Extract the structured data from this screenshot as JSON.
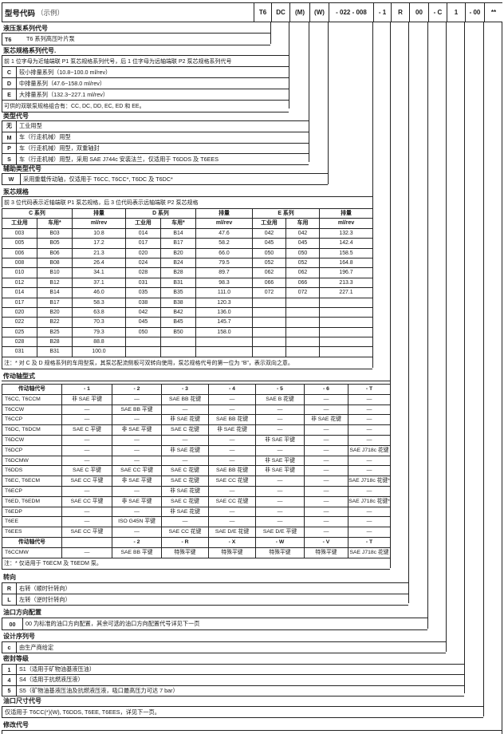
{
  "header": {
    "title": "型号代码",
    "title_suffix": "（示例）",
    "codes": [
      "T6",
      "DC",
      "(M)",
      "(W)",
      "- 022 - 008",
      "- 1",
      "R",
      "00",
      "- C",
      "1",
      "- 00",
      "**"
    ]
  },
  "sections": {
    "series": {
      "title": "液压泵系列代号",
      "rows": [
        {
          "code": "T6",
          "desc": "T6 系列高压叶片泵"
        }
      ]
    },
    "cartridge_series": {
      "title": "泵芯规格系列代号.",
      "subtitle": "前 1 位字母为近轴端联 P1 泵芯规格系列代号，后 1 位字母为远轴端联 P2 泵芯规格系列代号",
      "rows": [
        {
          "code": "C",
          "desc": "较小排量系列（10.8~100.0 ml/rev）"
        },
        {
          "code": "D",
          "desc": "中排量系列（47.6~158.0 ml/rev）"
        },
        {
          "code": "E",
          "desc": "大排量系列（132.3~227.1 ml/rev）"
        }
      ],
      "note": "可供的双联泵规格组合有：CC, DC, DD, EC, ED 和 EE。"
    },
    "type": {
      "title": "类型代号",
      "rows": [
        {
          "code": "无",
          "desc": "工业用型"
        },
        {
          "code": "M",
          "desc": "车（行走机械）用型"
        },
        {
          "code": "P",
          "desc": "车（行走机械）用型，双重轴封"
        },
        {
          "code": "S",
          "desc": "车（行走机械）用型，采用 SAE J744c 安装法兰，仅适用于 T6DDS 及 T6EES"
        }
      ]
    },
    "aux_type": {
      "title": "辅助类型代号",
      "rows": [
        {
          "code": "W",
          "desc": "采用重载传动轴，仅适用于 T6CC, T6CC*, T6DC 及 T6DC*"
        }
      ]
    },
    "cartridge_size": {
      "title": "泵芯规格",
      "subtitle": "前 3 位代码表示近轴端联 P1 泵芯规格，后 3 位代码表示远轴端联 P2 泵芯规格",
      "group_headers": [
        [
          "C 系列",
          "排量",
          "D 系列",
          "排量",
          "E 系列",
          "排量"
        ]
      ],
      "col_headers": [
        [
          "工业用",
          "车用*",
          "ml/rev",
          "工业用",
          "车用*",
          "ml/rev",
          "工业用",
          "车用",
          "ml/rev"
        ]
      ],
      "rows": [
        [
          "003",
          "B03",
          "10.8",
          "014",
          "B14",
          "47.6",
          "042",
          "042",
          "132.3"
        ],
        [
          "005",
          "B05",
          "17.2",
          "017",
          "B17",
          "58.2",
          "045",
          "045",
          "142.4"
        ],
        [
          "006",
          "B06",
          "21.3",
          "020",
          "B20",
          "66.0",
          "050",
          "050",
          "158.5"
        ],
        [
          "008",
          "B08",
          "26.4",
          "024",
          "B24",
          "79.5",
          "052",
          "052",
          "164.8"
        ],
        [
          "010",
          "B10",
          "34.1",
          "028",
          "B28",
          "89.7",
          "062",
          "062",
          "196.7"
        ],
        [
          "012",
          "B12",
          "37.1",
          "031",
          "B31",
          "98.3",
          "066",
          "066",
          "213.3"
        ],
        [
          "014",
          "B14",
          "46.0",
          "035",
          "B35",
          "111.0",
          "072",
          "072",
          "227.1"
        ],
        [
          "017",
          "B17",
          "58.3",
          "038",
          "B38",
          "120.3",
          "",
          "",
          ""
        ],
        [
          "020",
          "B20",
          "63.8",
          "042",
          "B42",
          "136.0",
          "",
          "",
          ""
        ],
        [
          "022",
          "B22",
          "70.3",
          "045",
          "B45",
          "145.7",
          "",
          "",
          ""
        ],
        [
          "025",
          "B25",
          "79.3",
          "050",
          "B50",
          "158.0",
          "",
          "",
          ""
        ],
        [
          "028",
          "B28",
          "88.8",
          "",
          "",
          "",
          "",
          "",
          ""
        ],
        [
          "031",
          "B31",
          "100.0",
          "",
          "",
          "",
          "",
          "",
          ""
        ]
      ],
      "note": "注：* 对 C 及 D 规格系列的车用型泵，其泵芯配流侧板可双转向使用，泵芯规格代号的第一位为 “B”，表示双向之意。"
    },
    "shaft": {
      "title": "传动轴型式",
      "header_rows": [
        [
          "传动轴代号",
          "- 1",
          "- 2",
          "- 3",
          "- 4",
          "- 5",
          "- 6",
          "- T"
        ]
      ],
      "rows": [
        [
          "T6CC, T6CCM",
          "非 SAE 平键",
          "—",
          "SAE BB 花键",
          "—",
          "SAE B 花键",
          "—",
          "—"
        ],
        [
          "T6CCW",
          "—",
          "SAE BB 平键",
          "—",
          "—",
          "—",
          "—",
          "—"
        ],
        [
          "T6CCP",
          "—",
          "—",
          "非 SAE 花键",
          "SAE BB 花键",
          "—",
          "非 SAE 花键",
          "—"
        ],
        [
          "T6DC, T6DCM",
          "SAE C 平键",
          "非 SAE 平键",
          "SAE C 花键",
          "非 SAE 花键",
          "—",
          "—",
          "—"
        ],
        [
          "T6DCW",
          "—",
          "—",
          "—",
          "—",
          "非 SAE 平键",
          "—",
          "—"
        ],
        [
          "T6DCP",
          "—",
          "—",
          "非 SAE 花键",
          "—",
          "—",
          "—",
          "SAE J718c 花键"
        ],
        [
          "T6DCMW",
          "—",
          "—",
          "—",
          "—",
          "非 SAE 平键",
          "—",
          "—"
        ],
        [
          "T6DDS",
          "SAE C 平键",
          "SAE CC 平键",
          "SAE C 花键",
          "SAE BB 花键",
          "非 SAE 平键",
          "—",
          "—"
        ],
        [
          "T6EC, T6ECM",
          "SAE CC 平键",
          "非 SAE 平键",
          "SAE C 花键",
          "SAE CC 花键",
          "—",
          "—",
          "SAE J718c 花键*"
        ],
        [
          "T6ECP",
          "—",
          "—",
          "非 SAE 花键",
          "—",
          "—",
          "—",
          "—"
        ],
        [
          "T6ED, T6EDM",
          "SAE CC 平键",
          "非 SAE 平键",
          "SAE C 花键",
          "SAE CC 花键",
          "—",
          "—",
          "SAE J718c 花键*"
        ],
        [
          "T6EDP",
          "—",
          "—",
          "非 SAE 花键",
          "—",
          "—",
          "—",
          "—"
        ],
        [
          "T6EE",
          "—",
          "ISO G45N 平键",
          "—",
          "—",
          "—",
          "—",
          "—"
        ],
        [
          "T6EES",
          "SAE CC 平键",
          "—",
          "SAE CC 花键",
          "SAE D/E 花键",
          "SAE D/E 平键",
          "—",
          "—"
        ]
      ],
      "header2_rows": [
        [
          "传动轴代号",
          "",
          "- 2",
          "- R",
          "- X",
          "- W",
          "- V",
          "- T"
        ]
      ],
      "rows2": [
        [
          "T6CCMW",
          "—",
          "SAE BB 平键",
          "特殊平键",
          "特殊平键",
          "特殊平键",
          "特殊平键",
          "SAE J718c 花键"
        ]
      ],
      "note": "注：* 仅适用于 T6ECM 及 T6EDM 泵。"
    },
    "rotation": {
      "title": "转向",
      "rows": [
        {
          "code": "R",
          "desc": "右转（顺时针转向）"
        },
        {
          "code": "L",
          "desc": "左转（逆时针转向）"
        }
      ]
    },
    "port_orientation": {
      "title": "油口方向配置",
      "rows": [
        {
          "code": "00",
          "desc": "00 为标准的油口方向配置，其余可选的油口方向配置代号详见下一页"
        }
      ]
    },
    "design": {
      "title": "设计序列号",
      "rows": [
        {
          "code": "c",
          "desc": "由生产商给定"
        }
      ]
    },
    "seal": {
      "title": "密封等级",
      "rows": [
        {
          "code": "1",
          "desc": "S1（适用于矿物油基液压油）"
        },
        {
          "code": "4",
          "desc": "S4（适用于抗燃液压液）"
        },
        {
          "code": "5",
          "desc": "S5（矿物油基液压油及抗燃液压液，吸口最高压力可达 7 bar）"
        }
      ]
    },
    "port_size": {
      "title": "油口尺寸代号",
      "desc": "仅适用于 T6CC(*)(W), T6DDS, T6EE, T6EES，详见下一页。"
    },
    "modification": {
      "title": "修改代号"
    }
  }
}
